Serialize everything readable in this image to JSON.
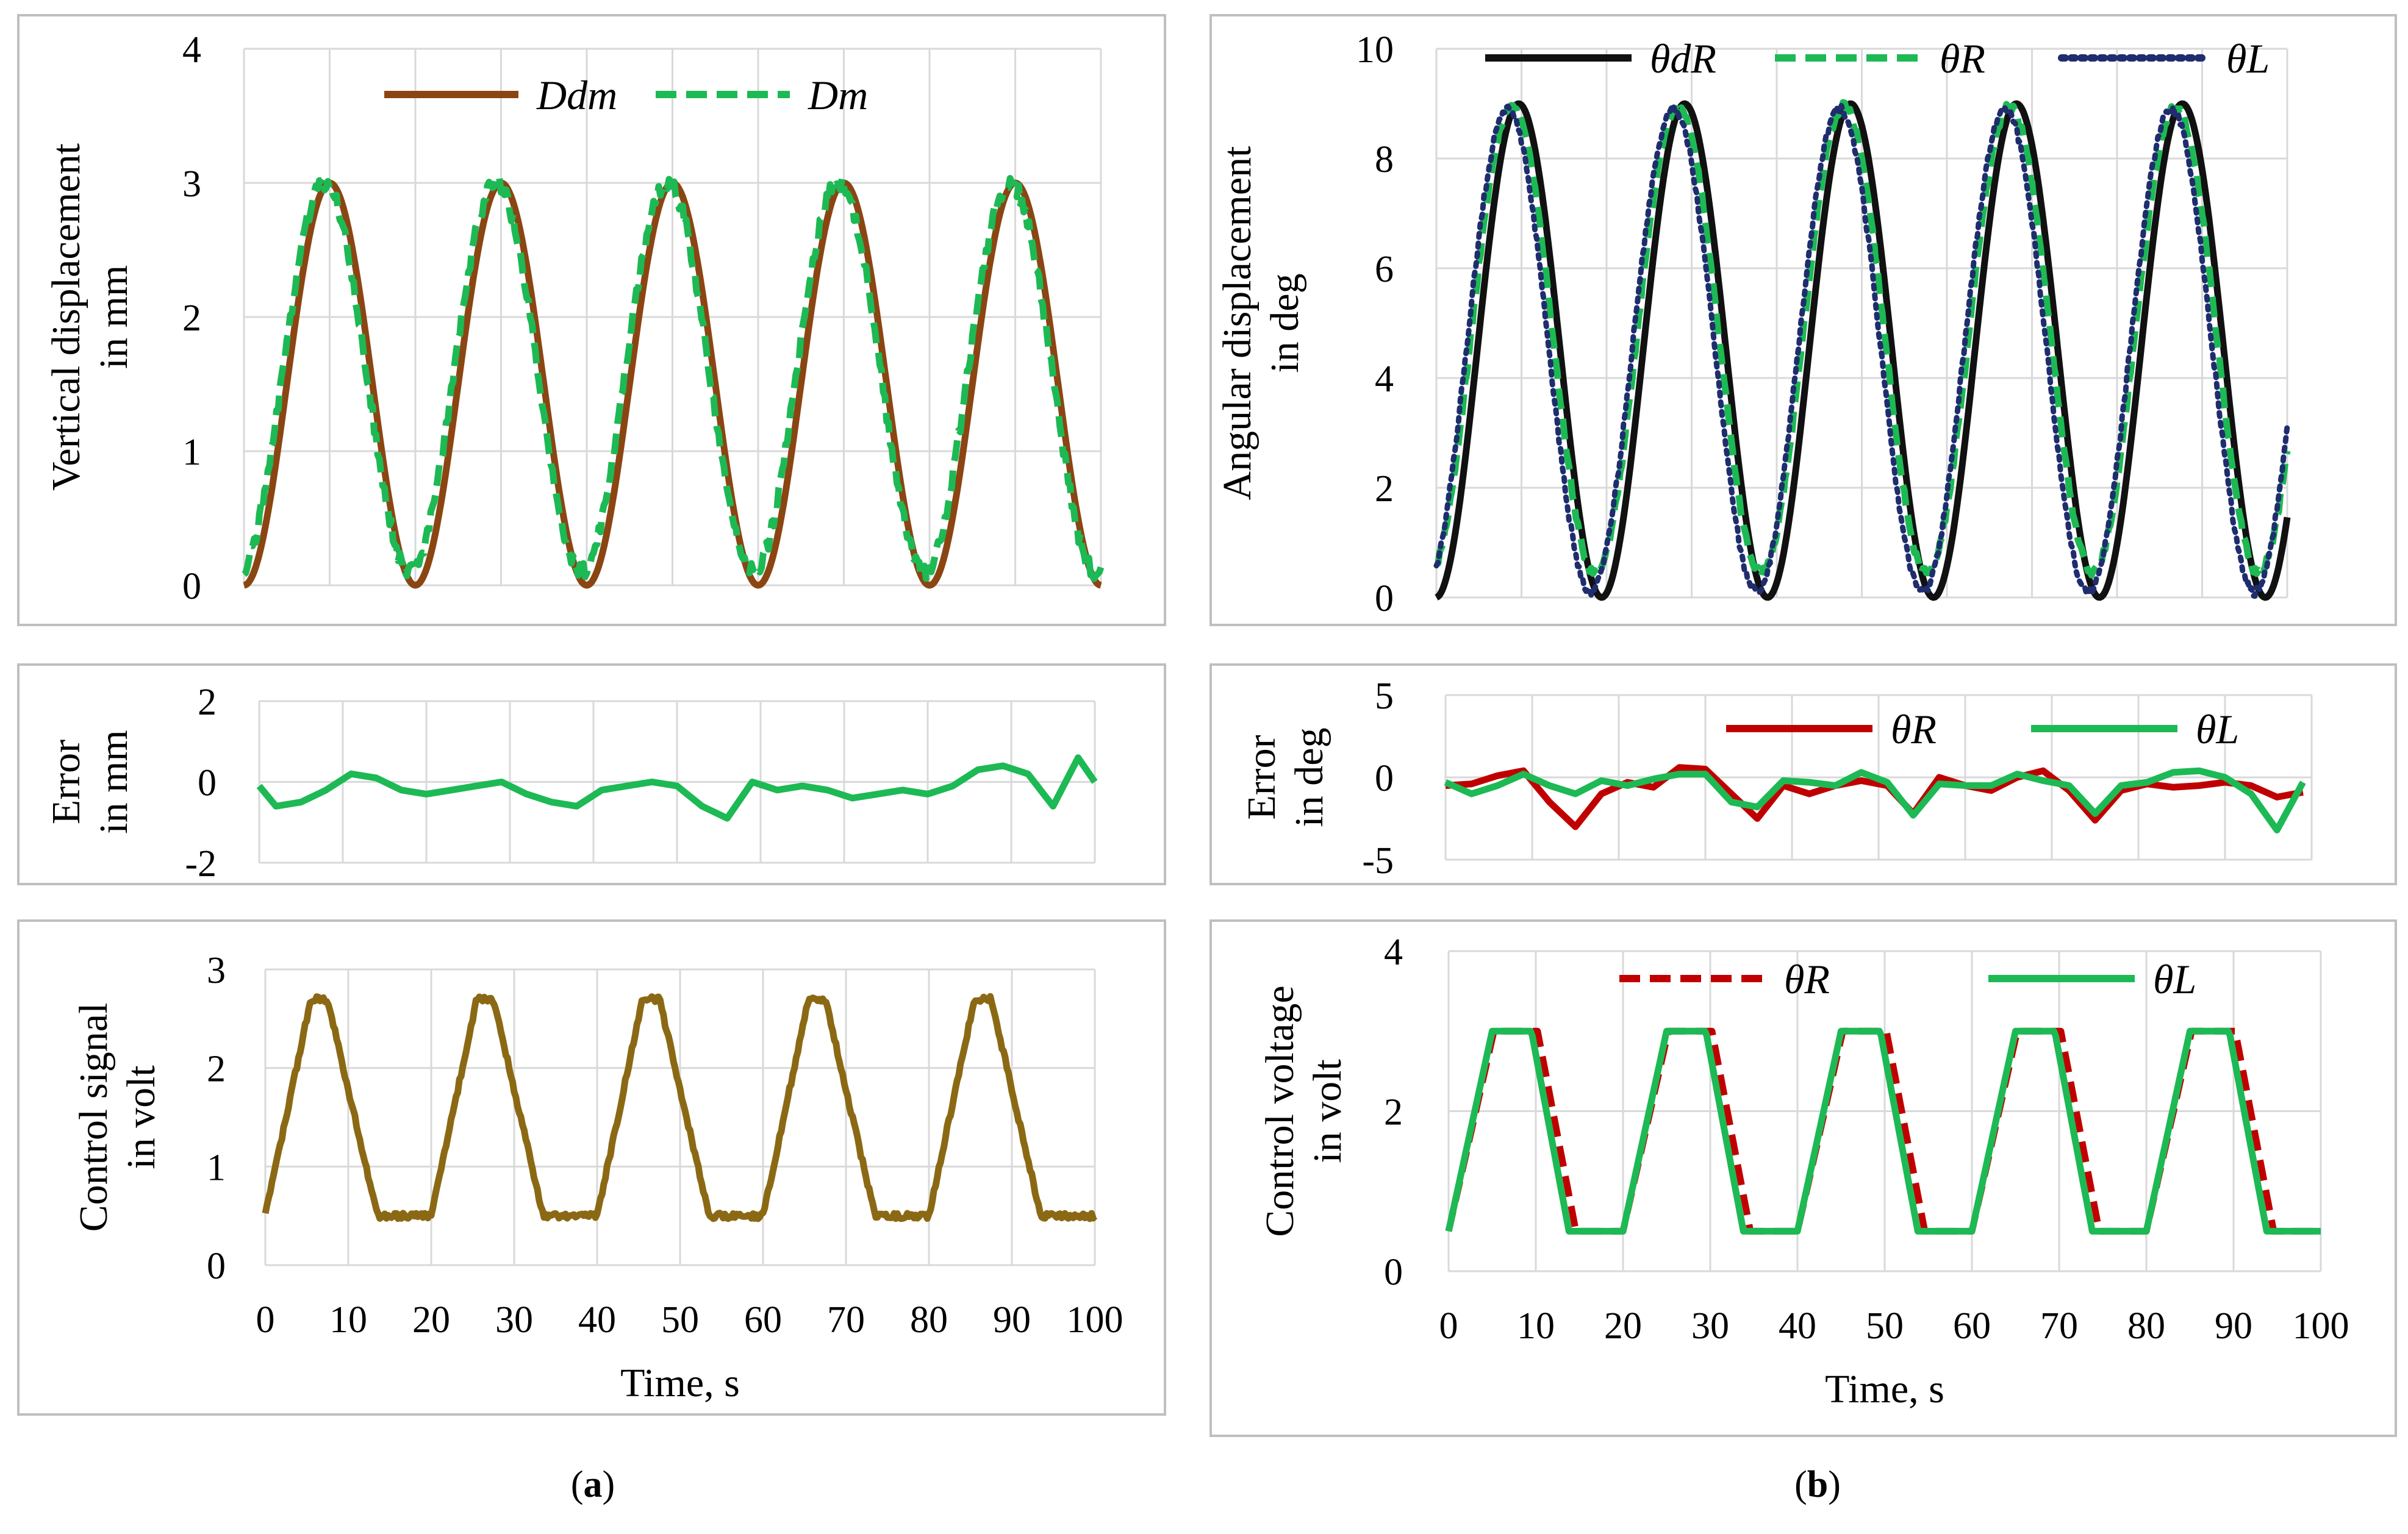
{
  "panel_labels": {
    "a": "a",
    "b": "b"
  },
  "chart_data": [
    {
      "id": "a_top",
      "type": "line",
      "ylabel": "Vertical displacement in mm",
      "ylabel_lines": [
        "Vertical displacement",
        "in mm"
      ],
      "ylim": [
        0,
        4
      ],
      "xlim": [
        0,
        100
      ],
      "yticks": [
        "0",
        "1",
        "2",
        "3",
        "4"
      ],
      "xticks": [],
      "legend": "top-center",
      "grid": "vertical",
      "series": [
        {
          "name": "Ddm",
          "color": "#8B4513",
          "dash": "solid",
          "gen": "sine",
          "amp": 1.5,
          "offset": 1.5,
          "period": 20,
          "phase": -5,
          "noise": 0
        },
        {
          "name": "Dm",
          "color": "#1DB954",
          "dash": "dashed",
          "gen": "sine",
          "amp": 1.45,
          "offset": 1.55,
          "period": 20,
          "phase": -4.4,
          "noise": 0.06
        }
      ]
    },
    {
      "id": "a_mid",
      "type": "line",
      "ylabel": "Error in mm",
      "ylabel_lines": [
        "Error",
        "in mm"
      ],
      "ylim": [
        -2,
        2
      ],
      "xlim": [
        0,
        100
      ],
      "yticks": [
        "-2",
        "0",
        "2"
      ],
      "xticks": [],
      "grid": "vertical",
      "series": [
        {
          "name": "Error",
          "color": "#1DB954",
          "dash": "solid",
          "gen": "points",
          "x": [
            0,
            2,
            5,
            8,
            11,
            14,
            17,
            20,
            23,
            26,
            29,
            32,
            35,
            38,
            41,
            44,
            47,
            50,
            53,
            56,
            59,
            62,
            65,
            68,
            71,
            74,
            77,
            80,
            83,
            86,
            89,
            92,
            95,
            98,
            100
          ],
          "y": [
            -0.1,
            -0.6,
            -0.5,
            -0.2,
            0.2,
            0.1,
            -0.2,
            -0.3,
            -0.2,
            -0.1,
            0.0,
            -0.3,
            -0.5,
            -0.6,
            -0.2,
            -0.1,
            0.0,
            -0.1,
            -0.6,
            -0.9,
            0.0,
            -0.2,
            -0.1,
            -0.2,
            -0.4,
            -0.3,
            -0.2,
            -0.3,
            -0.1,
            0.3,
            0.4,
            0.2,
            -0.6,
            0.6,
            0.0
          ]
        }
      ]
    },
    {
      "id": "a_bot",
      "type": "line",
      "ylabel": "Control signal in volt",
      "ylabel_lines": [
        "Control signal",
        "in volt"
      ],
      "ylim": [
        0,
        3
      ],
      "xlim": [
        0,
        100
      ],
      "yticks": [
        "0",
        "1",
        "2",
        "3"
      ],
      "xticks": [
        "0",
        "10",
        "20",
        "30",
        "40",
        "50",
        "60",
        "70",
        "80",
        "90",
        "100"
      ],
      "xlabel": "Time, s",
      "grid": "vertical",
      "series": [
        {
          "name": "Control signal",
          "color": "#8B6914",
          "dash": "solid",
          "gen": "trap",
          "lo": 0.5,
          "hi": 2.7,
          "rise_start": 0,
          "rise_len": 5.5,
          "top_len": 2,
          "fall_len": 6,
          "period": 20,
          "noise": 0.03
        }
      ]
    },
    {
      "id": "b_top",
      "type": "line",
      "ylabel": "Angular displacement in deg",
      "ylabel_lines": [
        "Angular displacement",
        "in deg"
      ],
      "ylim": [
        0,
        10
      ],
      "xlim": [
        0,
        100
      ],
      "yticks": [
        "0",
        "2",
        "4",
        "6",
        "8",
        "10"
      ],
      "xticks": [],
      "legend": "top",
      "grid": "vertical",
      "series": [
        {
          "name": "θdR",
          "color": "#111111",
          "dash": "solid",
          "gen": "sine",
          "amp": 4.5,
          "offset": 4.5,
          "period": 19.5,
          "phase": -4.8,
          "noise": 0
        },
        {
          "name": "θR",
          "color": "#1DB954",
          "dash": "dashed",
          "gen": "sine",
          "amp": 4.25,
          "offset": 4.7,
          "period": 19.5,
          "phase": -4.0,
          "noise": 0.08
        },
        {
          "name": "θL",
          "color": "#1F2D6E",
          "dash": "dotted",
          "gen": "sine",
          "amp": 4.4,
          "offset": 4.5,
          "period": 19.5,
          "phase": -3.5,
          "noise": 0.08
        }
      ]
    },
    {
      "id": "b_mid",
      "type": "line",
      "ylabel": "Error in deg",
      "ylabel_lines": [
        "Error",
        "in deg"
      ],
      "ylim": [
        -5,
        5
      ],
      "xlim": [
        0,
        100
      ],
      "yticks": [
        "-5",
        "0",
        "5"
      ],
      "xticks": [],
      "legend": "top-right",
      "grid": "vertical",
      "series": [
        {
          "name": "θR",
          "color": "#C00000",
          "dash": "solid",
          "gen": "points",
          "x": [
            0,
            3,
            6,
            9,
            12,
            15,
            18,
            21,
            24,
            27,
            30,
            33,
            36,
            39,
            42,
            45,
            48,
            51,
            54,
            57,
            60,
            63,
            66,
            69,
            72,
            75,
            78,
            81,
            84,
            87,
            90,
            93,
            96,
            99
          ],
          "y": [
            -0.5,
            -0.4,
            0.1,
            0.4,
            -1.5,
            -3.0,
            -1.0,
            -0.3,
            -0.6,
            0.6,
            0.5,
            -1.0,
            -2.5,
            -0.5,
            -1.0,
            -0.5,
            -0.2,
            -0.5,
            -2.2,
            0.0,
            -0.5,
            -0.8,
            0.0,
            0.4,
            -0.8,
            -2.6,
            -0.8,
            -0.4,
            -0.6,
            -0.5,
            -0.3,
            -0.5,
            -1.2,
            -0.9
          ]
        },
        {
          "name": "θL",
          "color": "#1DB954",
          "dash": "solid",
          "gen": "points",
          "x": [
            0,
            3,
            6,
            9,
            12,
            15,
            18,
            21,
            24,
            27,
            30,
            33,
            36,
            39,
            42,
            45,
            48,
            51,
            54,
            57,
            60,
            63,
            66,
            69,
            72,
            75,
            78,
            81,
            84,
            87,
            90,
            93,
            96,
            99
          ],
          "y": [
            -0.3,
            -1.0,
            -0.5,
            0.2,
            -0.5,
            -1.0,
            -0.2,
            -0.5,
            -0.1,
            0.2,
            0.2,
            -1.5,
            -1.8,
            -0.2,
            -0.3,
            -0.5,
            0.3,
            -0.3,
            -2.3,
            -0.4,
            -0.5,
            -0.5,
            0.2,
            -0.2,
            -0.5,
            -2.2,
            -0.5,
            -0.3,
            0.3,
            0.4,
            0.0,
            -1.0,
            -3.2,
            -0.3
          ]
        }
      ]
    },
    {
      "id": "b_bot",
      "type": "line",
      "ylabel": "Control voltage in volt",
      "ylabel_lines": [
        "Control voltage",
        "in volt"
      ],
      "ylim": [
        0,
        4
      ],
      "xlim": [
        0,
        100
      ],
      "yticks": [
        "0",
        "2",
        "4"
      ],
      "xticks": [
        "0",
        "10",
        "20",
        "30",
        "40",
        "50",
        "60",
        "70",
        "80",
        "90",
        "100"
      ],
      "xlabel": "Time, s",
      "legend": "top",
      "grid": "vertical",
      "series": [
        {
          "name": "θR",
          "color": "#C00000",
          "dash": "dashed",
          "gen": "trap",
          "lo": 0.5,
          "hi": 3.0,
          "rise_start": 0,
          "rise_len": 5.2,
          "top_len": 5,
          "fall_len": 4.4,
          "period": 20,
          "noise": 0
        },
        {
          "name": "θL",
          "color": "#1DB954",
          "dash": "solid",
          "gen": "trap",
          "lo": 0.5,
          "hi": 3.0,
          "rise_start": 0,
          "rise_len": 5.0,
          "top_len": 4.5,
          "fall_len": 4.3,
          "period": 20,
          "noise": 0
        }
      ]
    }
  ]
}
